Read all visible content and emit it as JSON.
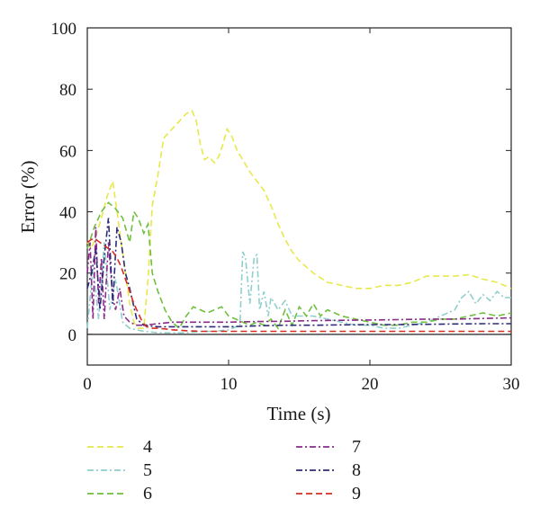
{
  "chart_data": {
    "type": "line",
    "title": "",
    "xlabel": "Time (s)",
    "ylabel": "Error (%)",
    "xlim": [
      0,
      30
    ],
    "ylim": [
      -10,
      100
    ],
    "xticks": [
      0,
      10,
      20,
      30
    ],
    "yticks": [
      0,
      20,
      40,
      60,
      80,
      100
    ],
    "grid": false,
    "legend_placement": "bottom-two-columns",
    "zero_line": true,
    "series": [
      {
        "name": "4",
        "color": "#e8e84a",
        "dash": "dashed",
        "x": [
          0,
          0.3,
          0.6,
          1.0,
          1.4,
          1.8,
          2.1,
          2.4,
          2.7,
          3.0,
          3.3,
          3.6,
          4.0,
          4.3,
          4.6,
          5.0,
          5.4,
          5.8,
          6.2,
          6.6,
          7.0,
          7.4,
          7.7,
          8.0,
          8.3,
          8.6,
          9.0,
          9.3,
          9.6,
          9.9,
          10.2,
          10.6,
          11.0,
          11.5,
          12.0,
          12.5,
          13.0,
          13.5,
          14.0,
          14.5,
          15.0,
          15.5,
          16.0,
          17.0,
          18.0,
          19.0,
          20.0,
          21.0,
          22.0,
          23.0,
          24.0,
          25.0,
          26.0,
          27.0,
          28.0,
          29.0,
          30.0
        ],
        "y": [
          30,
          28,
          32,
          38,
          45,
          50,
          40,
          30,
          20,
          10,
          4,
          2,
          2,
          18,
          42,
          52,
          64,
          66,
          68,
          70,
          72,
          73,
          70,
          62,
          57,
          58,
          56,
          58,
          62,
          67,
          65,
          60,
          57,
          53,
          50,
          47,
          42,
          36,
          31,
          27,
          24,
          22,
          20,
          17,
          16,
          15,
          15,
          16,
          16,
          17,
          19,
          19,
          19,
          19.5,
          18,
          17,
          15
        ]
      },
      {
        "name": "5",
        "color": "#8fcfcc",
        "dash": "dash-dot",
        "x": [
          0,
          0.4,
          0.8,
          1.2,
          1.6,
          2.0,
          2.5,
          3.0,
          4.0,
          5.0,
          6.0,
          7.0,
          8.0,
          9.0,
          10.0,
          10.8,
          11.0,
          11.2,
          11.5,
          11.8,
          12.0,
          12.2,
          12.5,
          12.8,
          13.0,
          13.5,
          14.0,
          14.5,
          15.0,
          16.0,
          17.0,
          18.0,
          19.0,
          20.0,
          21.0,
          22.0,
          23.0,
          24.0,
          25.0,
          26.0,
          26.5,
          27.0,
          27.5,
          28.0,
          28.5,
          29.0,
          29.5,
          30.0
        ],
        "y": [
          2,
          22,
          5,
          30,
          8,
          18,
          4,
          2,
          1,
          0.5,
          0.5,
          0.5,
          1,
          1,
          1.5,
          3,
          27,
          25,
          10,
          25,
          26,
          8,
          14,
          6,
          12,
          8,
          11,
          6,
          6,
          6,
          5,
          4,
          3,
          3,
          2,
          2,
          3,
          4,
          6,
          8,
          12,
          14,
          10,
          13,
          11,
          14,
          12,
          12
        ]
      },
      {
        "name": "6",
        "color": "#6fbf3f",
        "dash": "dashed",
        "x": [
          0,
          0.5,
          1.0,
          1.5,
          2.0,
          2.5,
          3.0,
          3.3,
          3.6,
          4.0,
          4.3,
          4.6,
          5.0,
          5.5,
          6.0,
          6.5,
          7.0,
          7.5,
          8.0,
          8.5,
          9.0,
          9.5,
          10.0,
          10.5,
          11.0,
          11.5,
          12.0,
          12.5,
          13.0,
          13.5,
          14.0,
          14.5,
          15.0,
          15.5,
          16.0,
          16.5,
          17.0,
          17.5,
          18.0,
          19.0,
          20.0,
          21.0,
          22.0,
          23.0,
          24.0,
          25.0,
          26.0,
          27.0,
          28.0,
          29.0,
          30.0
        ],
        "y": [
          28,
          35,
          40,
          43,
          41,
          38,
          30,
          40,
          38,
          33,
          36,
          20,
          14,
          8,
          4,
          2,
          6,
          9,
          8,
          7,
          8,
          9,
          6,
          5,
          4,
          3,
          4,
          3,
          5,
          2,
          8,
          3,
          9,
          6,
          10,
          6,
          8,
          7,
          6,
          5,
          4,
          3,
          3,
          4,
          4,
          5,
          5,
          6,
          7,
          6,
          7
        ]
      },
      {
        "name": "7",
        "color": "#8b2a8b",
        "dash": "dash-dot",
        "x": [
          0,
          0.2,
          0.4,
          0.6,
          0.8,
          1.0,
          1.2,
          1.5,
          1.8,
          2.0,
          2.3,
          2.6,
          3.0,
          3.5,
          4.0,
          5.0,
          6.0,
          8.0,
          10.0,
          12.0,
          14.0,
          16.0,
          18.0,
          20.0,
          22.0,
          24.0,
          26.0,
          28.0,
          30.0
        ],
        "y": [
          20,
          30,
          5,
          35,
          10,
          25,
          5,
          30,
          12,
          8,
          15,
          6,
          4,
          3,
          3,
          3.5,
          4,
          4,
          4,
          4.2,
          4.3,
          4.5,
          4.6,
          4.7,
          4.8,
          5,
          5,
          5.2,
          5.4
        ]
      },
      {
        "name": "8",
        "color": "#2e2a7a",
        "dash": "dash-dot",
        "x": [
          0,
          0.3,
          0.6,
          0.9,
          1.2,
          1.5,
          1.8,
          2.1,
          2.4,
          2.7,
          3.0,
          3.5,
          4.0,
          5.0,
          6.0,
          8.0,
          10.0,
          12.0,
          14.0,
          16.0,
          18.0,
          20.0,
          22.0,
          24.0,
          26.0,
          28.0,
          30.0
        ],
        "y": [
          15,
          20,
          28,
          8,
          25,
          38,
          10,
          35,
          30,
          20,
          15,
          5,
          3,
          2.5,
          2.5,
          2.5,
          2.5,
          2.8,
          3,
          3,
          3.1,
          3.2,
          3.2,
          3.3,
          3.4,
          3.5,
          3.5
        ]
      },
      {
        "name": "9",
        "color": "#d62d1e",
        "dash": "dashed",
        "x": [
          0,
          0.3,
          0.6,
          0.9,
          1.2,
          1.5,
          1.8,
          2.1,
          2.4,
          2.7,
          3.0,
          3.3,
          3.6,
          3.9,
          4.2,
          4.5,
          5.0,
          5.5,
          6.0,
          7.0,
          8.0,
          10.0,
          12.0,
          14.0,
          16.0,
          18.0,
          20.0,
          22.0,
          24.0,
          26.0,
          28.0,
          30.0
        ],
        "y": [
          30,
          31,
          31,
          30,
          29,
          28,
          27,
          25,
          22,
          18,
          14,
          10,
          7,
          4,
          2.5,
          2,
          2,
          1.8,
          1.5,
          1.2,
          1,
          1,
          1,
          1,
          1,
          1,
          1,
          1,
          1,
          1,
          1,
          1
        ]
      }
    ]
  }
}
